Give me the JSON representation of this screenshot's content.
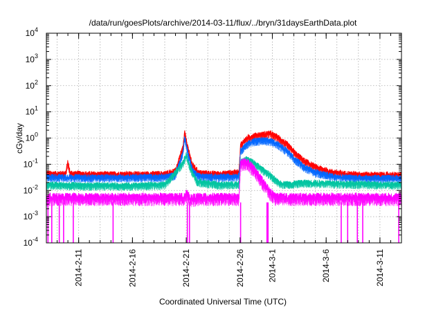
{
  "chart_data": {
    "type": "line",
    "title": "/data/run/goesPlots/archive/2014-03-11/flux/../bryn/31daysEarthData.plot",
    "xlabel": "Coordinated Universal Time (UTC)",
    "ylabel": "cGy/day",
    "yscale": "log",
    "ylim": [
      0.0001,
      10000
    ],
    "xlim": [
      "2014-02-08",
      "2014-03-13"
    ],
    "grid": true,
    "legend": "none",
    "x_tick_labels": [
      "2014-2-11",
      "2014-2-16",
      "2014-2-21",
      "2014-2-26",
      "2014-3-1",
      "2014-3-6",
      "2014-3-11"
    ],
    "x_tick_days": [
      3,
      8,
      13,
      18,
      21,
      26,
      31
    ],
    "y_tick_labels": [
      {
        "base": "10",
        "exp": "-4"
      },
      {
        "base": "10",
        "exp": "-3"
      },
      {
        "base": "10",
        "exp": "-2"
      },
      {
        "base": "10",
        "exp": "-1"
      },
      {
        "base": "10",
        "exp": "0"
      },
      {
        "base": "10",
        "exp": "1"
      },
      {
        "base": "10",
        "exp": "2"
      },
      {
        "base": "10",
        "exp": "3"
      },
      {
        "base": "10",
        "exp": "4"
      }
    ],
    "y_tick_values": [
      0.0001,
      0.001,
      0.01,
      0.1,
      1,
      10,
      100,
      1000,
      10000
    ],
    "series": [
      {
        "color": "#ff0000",
        "x": [
          0,
          1,
          1.8,
          2,
          2.2,
          4,
          8,
          11,
          12,
          12.7,
          12.85,
          13.2,
          13.6,
          14.2,
          16,
          17.9,
          18.05,
          18.7,
          19.3,
          20,
          20.8,
          21.6,
          22.4,
          23.2,
          24,
          25,
          26.5,
          28,
          30,
          32,
          33
        ],
        "y": [
          0.04,
          0.038,
          0.04,
          0.11,
          0.04,
          0.037,
          0.037,
          0.038,
          0.05,
          0.4,
          1.45,
          0.3,
          0.08,
          0.042,
          0.038,
          0.045,
          0.5,
          0.9,
          1.1,
          1.2,
          1.35,
          0.9,
          0.5,
          0.22,
          0.12,
          0.07,
          0.045,
          0.038,
          0.036,
          0.035,
          0.034
        ]
      },
      {
        "color": "#0066ff",
        "x": [
          0,
          4,
          8,
          11,
          12,
          12.7,
          12.85,
          13.2,
          13.6,
          14.2,
          16,
          17.9,
          18.05,
          18.7,
          19.3,
          20,
          20.8,
          21.6,
          22.4,
          23.2,
          24,
          25,
          26.5,
          28,
          30,
          32,
          33
        ],
        "y": [
          0.03,
          0.028,
          0.029,
          0.03,
          0.035,
          0.25,
          0.9,
          0.2,
          0.05,
          0.032,
          0.029,
          0.032,
          0.3,
          0.55,
          0.7,
          0.75,
          0.7,
          0.5,
          0.28,
          0.13,
          0.07,
          0.045,
          0.032,
          0.028,
          0.027,
          0.027,
          0.026
        ]
      },
      {
        "color": "#00c4a0",
        "x": [
          0,
          4,
          8,
          11,
          12.7,
          13,
          13.4,
          14,
          16,
          17.9,
          18.05,
          18.6,
          19.2,
          20,
          20.8,
          21.4,
          21.8,
          22.6,
          24,
          26,
          29,
          33
        ],
        "y": [
          0.015,
          0.014,
          0.014,
          0.015,
          0.1,
          0.2,
          0.06,
          0.02,
          0.015,
          0.016,
          0.12,
          0.14,
          0.11,
          0.06,
          0.035,
          0.02,
          0.016,
          0.016,
          0.018,
          0.017,
          0.016,
          0.015
        ]
      },
      {
        "color": "#ff00ff",
        "x": [
          0,
          4,
          8,
          11,
          12.7,
          13,
          13.4,
          14,
          16,
          17.9,
          18.05,
          18.6,
          19.2,
          20,
          20.8,
          21.3,
          22,
          24,
          26,
          29,
          33
        ],
        "y": [
          0.0045,
          0.0045,
          0.0045,
          0.0045,
          0.0045,
          0.006,
          0.004,
          0.0045,
          0.0045,
          0.0045,
          0.09,
          0.1,
          0.06,
          0.02,
          0.007,
          0.0045,
          0.0045,
          0.0045,
          0.0045,
          0.0045,
          0.0045
        ]
      }
    ]
  }
}
